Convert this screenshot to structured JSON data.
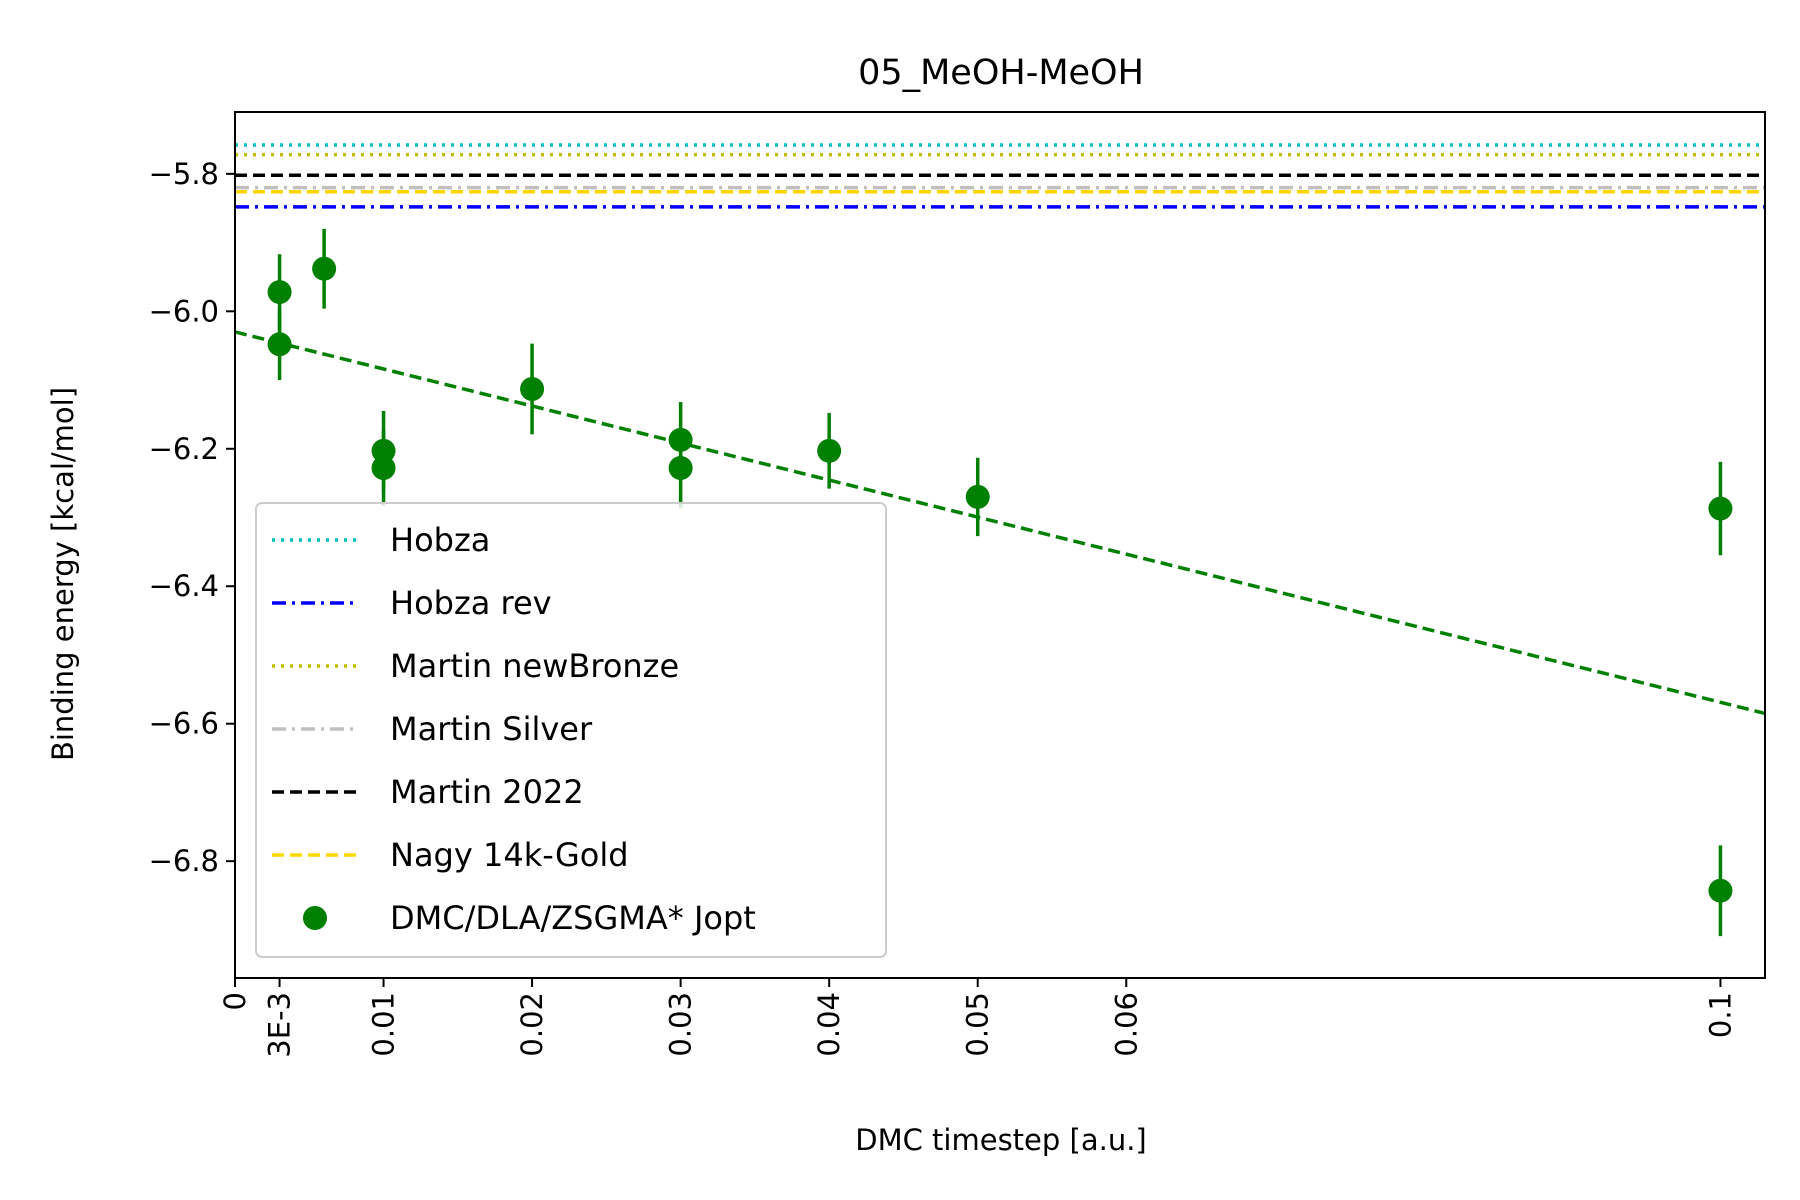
{
  "chart_data": {
    "type": "scatter",
    "title": "05_MeOH-MeOH",
    "xlabel": "DMC timestep [a.u.]",
    "ylabel": "Binding energy [kcal/mol]",
    "xlim": [
      0,
      0.103
    ],
    "ylim": [
      -6.97,
      -5.71
    ],
    "x_ticks": [
      {
        "value": 0,
        "label": "0"
      },
      {
        "value": 0.003,
        "label": "3E-3"
      },
      {
        "value": 0.01,
        "label": "0.01"
      },
      {
        "value": 0.02,
        "label": "0.02"
      },
      {
        "value": 0.03,
        "label": "0.03"
      },
      {
        "value": 0.04,
        "label": "0.04"
      },
      {
        "value": 0.05,
        "label": "0.05"
      },
      {
        "value": 0.06,
        "label": "0.06"
      },
      {
        "value": 0.1,
        "label": "0.1"
      }
    ],
    "y_ticks": [
      {
        "value": -5.8,
        "label": "−5.8"
      },
      {
        "value": -6.0,
        "label": "−6.0"
      },
      {
        "value": -6.2,
        "label": "−6.2"
      },
      {
        "value": -6.4,
        "label": "−6.4"
      },
      {
        "value": -6.6,
        "label": "−6.6"
      },
      {
        "value": -6.8,
        "label": "−6.8"
      }
    ],
    "grid": false,
    "legend_position": "lower-left",
    "reference_lines": [
      {
        "name": "Hobza",
        "y": -5.758,
        "color": "#00bfbf",
        "style": "dotted"
      },
      {
        "name": "Hobza rev",
        "y": -5.848,
        "color": "#0000ff",
        "style": "dashdot"
      },
      {
        "name": "Martin newBronze",
        "y": -5.772,
        "color": "#bfbf00",
        "style": "dotted"
      },
      {
        "name": "Martin Silver",
        "y": -5.82,
        "color": "#c0c0c0",
        "style": "dashdot"
      },
      {
        "name": "Martin 2022",
        "y": -5.802,
        "color": "#000000",
        "style": "dashed"
      },
      {
        "name": "Nagy 14k-Gold",
        "y": -5.826,
        "color": "#ffd700",
        "style": "dashed"
      }
    ],
    "series": [
      {
        "name": "DMC/DLA/ZSGMA* Jopt",
        "color": "#008000",
        "points": [
          {
            "x": 0.003,
            "y": -5.972,
            "err": 0.055
          },
          {
            "x": 0.003,
            "y": -6.048,
            "err": 0.052
          },
          {
            "x": 0.006,
            "y": -5.938,
            "err": 0.058
          },
          {
            "x": 0.01,
            "y": -6.203,
            "err": 0.058
          },
          {
            "x": 0.01,
            "y": -6.228,
            "err": 0.055
          },
          {
            "x": 0.02,
            "y": -6.113,
            "err": 0.066
          },
          {
            "x": 0.03,
            "y": -6.187,
            "err": 0.055
          },
          {
            "x": 0.03,
            "y": -6.228,
            "err": 0.058
          },
          {
            "x": 0.04,
            "y": -6.203,
            "err": 0.055
          },
          {
            "x": 0.05,
            "y": -6.27,
            "err": 0.057
          },
          {
            "x": 0.1,
            "y": -6.287,
            "err": 0.068
          },
          {
            "x": 0.1,
            "y": -6.843,
            "err": 0.066
          }
        ]
      }
    ],
    "fit_line": {
      "x": [
        0,
        0.103
      ],
      "y": [
        -6.03,
        -6.585
      ],
      "color": "#008000",
      "style": "dashed"
    }
  }
}
